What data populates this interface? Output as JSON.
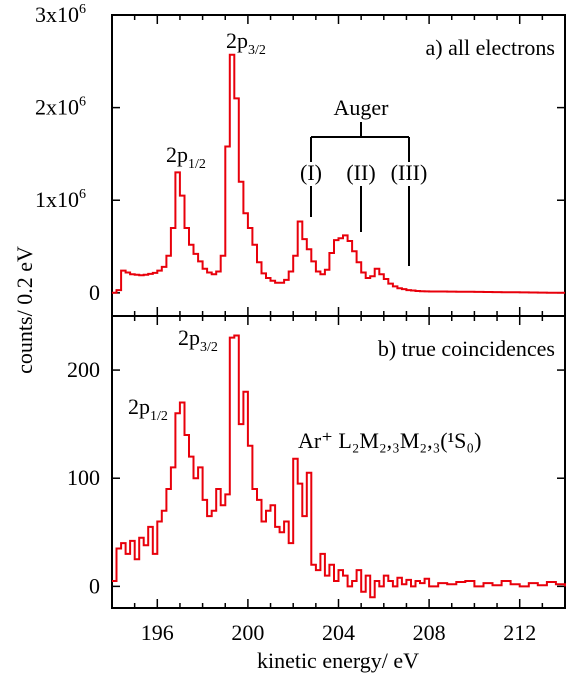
{
  "chart_data": {
    "type": "line",
    "xlabel": "kinetic energy/ eV",
    "ylabel": "counts/ 0.2 eV",
    "xlim": [
      194,
      214
    ],
    "x_ticks": [
      "196",
      "200",
      "204",
      "208",
      "212"
    ],
    "line_color": "#e8000b",
    "panels": [
      {
        "id": "a",
        "title": "a) all electrons",
        "ylim": [
          -250000,
          3000000
        ],
        "y_ticks": [
          {
            "base": "0",
            "exp": ""
          },
          {
            "base": "1x10",
            "exp": "6"
          },
          {
            "base": "2x10",
            "exp": "6"
          },
          {
            "base": "3x10",
            "exp": "6"
          }
        ],
        "peak_labels": {
          "p12": {
            "base": "2p",
            "sub": "1/2"
          },
          "p32": {
            "base": "2p",
            "sub": "3/2"
          },
          "auger": "Auger",
          "auger_I": "(I)",
          "auger_II": "(II)",
          "auger_III": "(III)"
        },
        "series": [
          {
            "x": [
              194.0,
              194.2,
              194.4,
              194.6,
              194.8,
              195.0,
              195.2,
              195.4,
              195.6,
              195.8,
              196.0,
              196.2,
              196.4,
              196.6,
              196.8,
              197.0,
              197.2,
              197.4,
              197.6,
              197.8,
              198.0,
              198.2,
              198.4,
              198.6,
              198.8,
              199.0,
              199.2,
              199.4,
              199.6,
              199.8,
              200.0,
              200.2,
              200.4,
              200.6,
              200.8,
              201.0,
              201.2,
              201.4,
              201.6,
              201.8,
              202.0,
              202.2,
              202.4,
              202.6,
              202.8,
              203.0,
              203.2,
              203.4,
              203.6,
              203.8,
              204.0,
              204.2,
              204.4,
              204.6,
              204.8,
              205.0,
              205.2,
              205.4,
              205.6,
              205.8,
              206.0,
              206.2,
              206.4,
              206.6,
              206.8,
              207.0,
              207.2,
              207.4,
              207.6,
              207.8,
              208.0,
              208.4,
              208.8,
              209.2,
              209.6,
              210.0,
              210.4,
              210.8,
              211.2,
              211.6,
              212.0,
              212.4,
              212.8,
              213.2,
              213.6,
              214.0
            ],
            "y": [
              0,
              30000,
              240000,
              220000,
              200000,
              195000,
              190000,
              195000,
              205000,
              215000,
              240000,
              280000,
              400000,
              700000,
              1300000,
              1050000,
              700000,
              520000,
              420000,
              340000,
              260000,
              220000,
              200000,
              230000,
              400000,
              1580000,
              2570000,
              2100000,
              1200000,
              860000,
              700000,
              520000,
              330000,
              210000,
              160000,
              130000,
              110000,
              110000,
              140000,
              230000,
              400000,
              770000,
              580000,
              470000,
              340000,
              230000,
              200000,
              250000,
              430000,
              570000,
              590000,
              620000,
              560000,
              450000,
              330000,
              220000,
              160000,
              180000,
              260000,
              200000,
              150000,
              100000,
              70000,
              50000,
              40000,
              30000,
              25000,
              20000,
              18000,
              16000,
              15000,
              14000,
              13000,
              12000,
              11000,
              10000,
              9000,
              8000,
              7000,
              6000,
              5000,
              4000,
              3000,
              2000,
              1000,
              500
            ]
          }
        ]
      },
      {
        "id": "b",
        "title": "b) true coincidences",
        "ylim": [
          -20,
          250
        ],
        "y_ticks": [
          {
            "base": "0",
            "exp": ""
          },
          {
            "base": "100",
            "exp": ""
          },
          {
            "base": "200",
            "exp": ""
          }
        ],
        "peak_labels": {
          "p12": {
            "base": "2p",
            "sub": "1/2"
          },
          "p32": {
            "base": "2p",
            "sub": "3/2"
          },
          "auger_line": "Ar⁺ L₂M₂,₃M₂,₃(¹S₀)"
        },
        "series": [
          {
            "x": [
              194.0,
              194.2,
              194.4,
              194.6,
              194.8,
              195.0,
              195.2,
              195.4,
              195.6,
              195.8,
              196.0,
              196.2,
              196.4,
              196.6,
              196.8,
              197.0,
              197.2,
              197.4,
              197.6,
              197.8,
              198.0,
              198.2,
              198.4,
              198.6,
              198.8,
              199.0,
              199.2,
              199.4,
              199.6,
              199.8,
              200.0,
              200.2,
              200.4,
              200.6,
              200.8,
              201.0,
              201.2,
              201.4,
              201.6,
              201.8,
              202.0,
              202.2,
              202.4,
              202.6,
              202.8,
              203.0,
              203.2,
              203.4,
              203.6,
              203.8,
              204.0,
              204.2,
              204.4,
              204.6,
              204.8,
              205.0,
              205.2,
              205.4,
              205.6,
              205.8,
              206.0,
              206.2,
              206.4,
              206.6,
              206.8,
              207.0,
              207.2,
              207.4,
              207.6,
              207.8,
              208.0,
              208.4,
              208.8,
              209.2,
              209.6,
              210.0,
              210.4,
              210.8,
              211.2,
              211.6,
              212.0,
              212.4,
              212.8,
              213.2,
              213.6,
              214.0
            ],
            "y": [
              5,
              35,
              40,
              30,
              42,
              25,
              45,
              38,
              55,
              30,
              60,
              70,
              90,
              110,
              160,
              170,
              140,
              120,
              100,
              110,
              80,
              65,
              70,
              90,
              75,
              85,
              230,
              232,
              150,
              180,
              130,
              90,
              80,
              60,
              70,
              75,
              55,
              50,
              60,
              40,
              118,
              95,
              65,
              105,
              20,
              15,
              30,
              10,
              20,
              5,
              15,
              10,
              0,
              5,
              15,
              -5,
              10,
              -10,
              5,
              0,
              10,
              5,
              0,
              8,
              2,
              6,
              0,
              5,
              3,
              7,
              0,
              3,
              2,
              4,
              5,
              0,
              3,
              1,
              5,
              2,
              0,
              3,
              1,
              4,
              2,
              0
            ]
          }
        ]
      }
    ]
  }
}
